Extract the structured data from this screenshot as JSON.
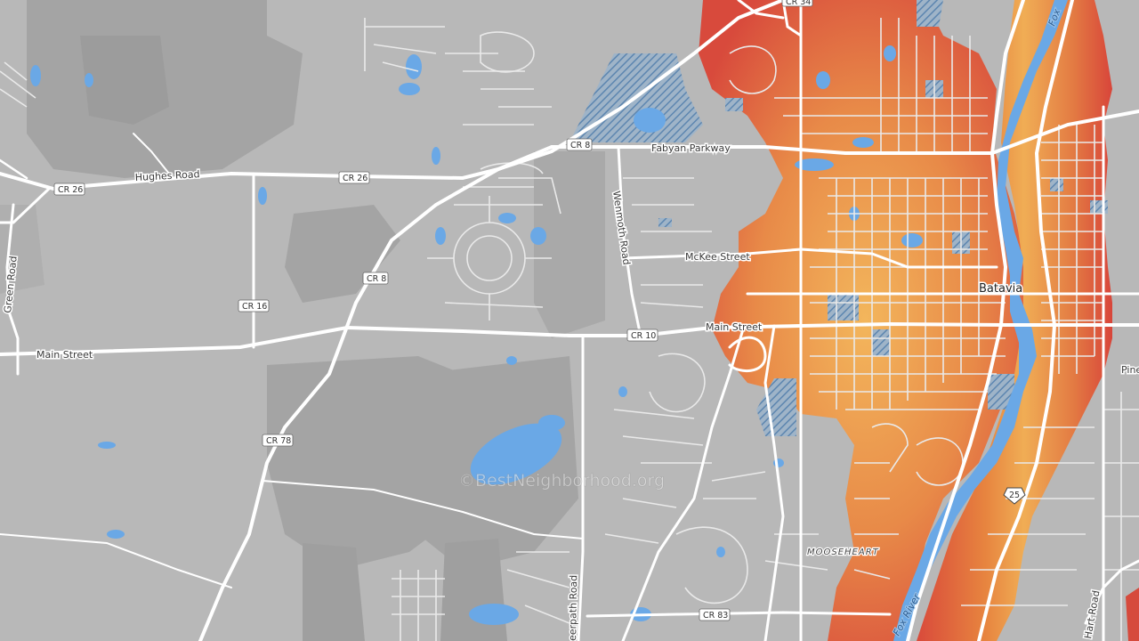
{
  "map": {
    "colors": {
      "land": "#b8b8b8",
      "land_dark": "#a4a4a4",
      "road": "#ffffff",
      "water": "#6aa8e6",
      "heat_low": "#f3b35c",
      "heat_high": "#d9443a"
    },
    "watermark": "©BestNeighborhood.org",
    "roads": {
      "hughes_road": "Hughes Road",
      "fabyan_parkway": "Fabyan Parkway",
      "mckee_street": "McKee Street",
      "main_street_west": "Main Street",
      "main_street_east": "Main Street",
      "wenmoth_road": "Wenmoth Road",
      "green_road": "Green Road",
      "deerpath_road": "eerpath Road",
      "hart_road": "Hart Road"
    },
    "shields": {
      "cr26_a": "CR 26",
      "cr26_b": "CR 26",
      "cr8_a": "CR 8",
      "cr8_b": "CR 8",
      "cr16": "CR 16",
      "cr10": "CR 10",
      "cr78": "CR 78",
      "cr83": "CR 83",
      "cr34": "CR 34",
      "hwy25": "25"
    },
    "places": {
      "batavia": "Batavia",
      "mooseheart": "MOOSEHEART",
      "pine": "Pine"
    },
    "rivers": {
      "fox_river": "Fox River",
      "fox_top": "Fox"
    }
  }
}
